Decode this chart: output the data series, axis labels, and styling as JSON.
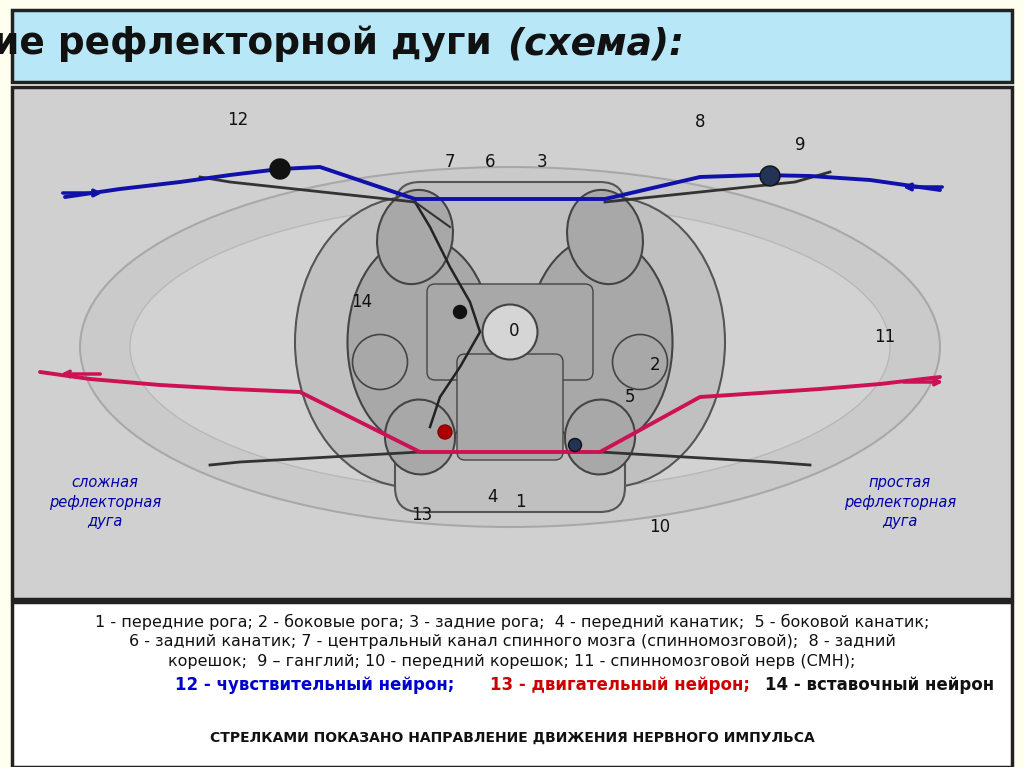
{
  "title_normal": "Строение рефлекторной дуги ",
  "title_italic": "(схема):",
  "bg_outer": "#fffff0",
  "bg_title_box": "#b8e8f8",
  "bg_diagram_box": "#d0d0d0",
  "bg_legend_box": "#ffffff",
  "border_color": "#222222",
  "legend_line1": "1 - передние рога; 2 - боковые рога; 3 - задние рога;  4 - передний канатик;  5 - боковой канатик;",
  "legend_line2": "6 - задний канатик; 7 - центральный канал спинного мозга (спинномозговой);  8 - задний",
  "legend_line3": "корешок;  9 – ганглий; 10 - передний корешок; 11 - спинномозговой нерв (СМН);",
  "legend_line4_blue": "12 - чувствительный нейрон; ",
  "legend_line4_red": "13 - двигательный нейрон; ",
  "legend_line4_black": "14 - вставочный нейрон",
  "legend_bottom": "СТРЕЛКАМИ ПОКАЗАНО НАПРАВЛЕНИЕ ДВИЖЕНИЯ НЕРВНОГО ИМПУЛЬСА",
  "left_label": "сложная\nрефлекторная\nдуга",
  "right_label": "простая\nрефлекторная\nдуга",
  "color_blue": "#0000cc",
  "color_red": "#cc0000",
  "color_pink": "#cc1155",
  "color_dark": "#111111",
  "color_gray_light": "#c8c8c8",
  "color_gray_mid": "#b0b0b0",
  "color_gray_dark": "#888888",
  "color_white_matter": "#c0c0c0",
  "color_gray_matter": "#a8a8a8"
}
